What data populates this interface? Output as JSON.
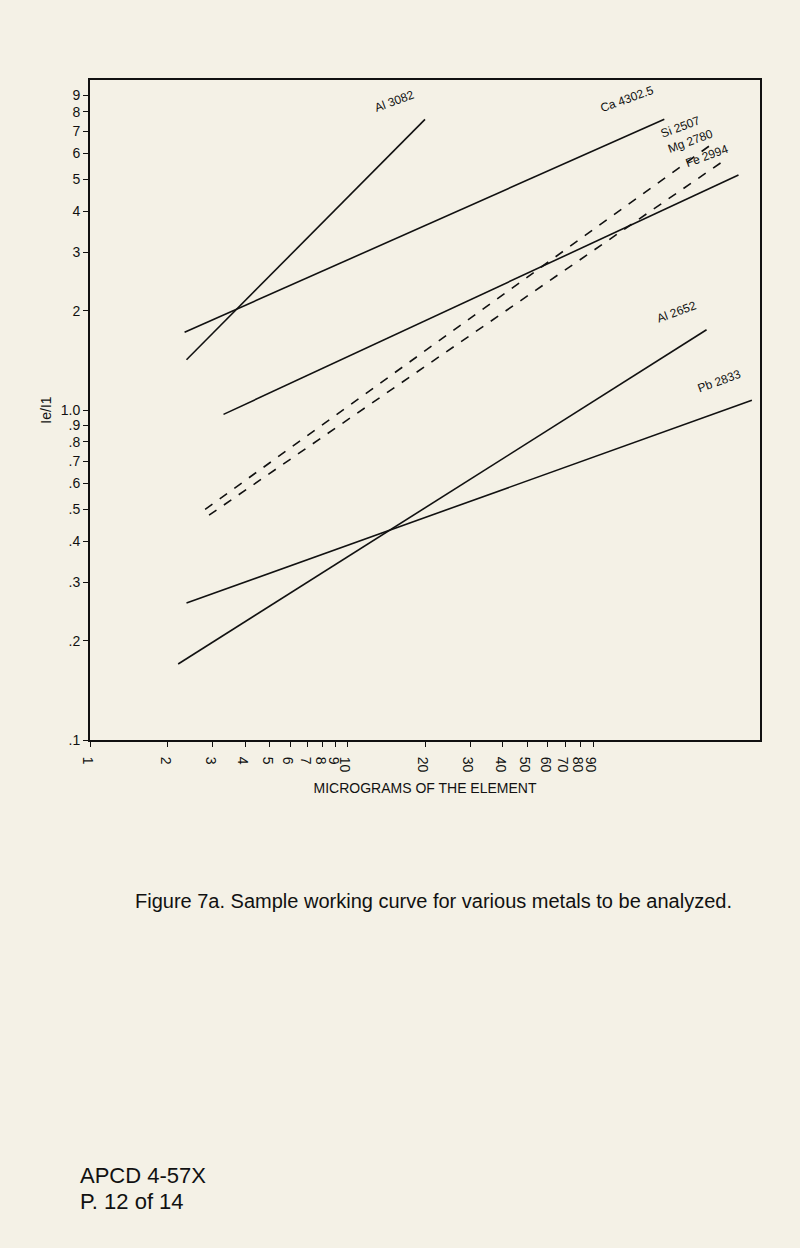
{
  "chart_data": {
    "type": "line",
    "x_label": "MICROGRAMS OF THE ELEMENT",
    "y_label": "Ie/I1",
    "caption": "Figure 7a. Sample working curve for various metals to be analyzed.",
    "footer": [
      "APCD 4-57X",
      "P. 12 of 14"
    ],
    "log": true,
    "grid": false,
    "xlim": [
      1,
      400
    ],
    "xticks": [
      1,
      2,
      3,
      4,
      5,
      6,
      7,
      8,
      9,
      10,
      20,
      30,
      40,
      50,
      60,
      70,
      80,
      90
    ],
    "ylim": [
      0.1,
      10
    ],
    "yticks": [
      {
        "value": 0.1,
        "label": ".1"
      },
      {
        "value": 0.2,
        "label": ".2"
      },
      {
        "value": 0.3,
        "label": ".3"
      },
      {
        "value": 0.4,
        "label": ".4"
      },
      {
        "value": 0.5,
        "label": ".5"
      },
      {
        "value": 0.6,
        "label": ".6"
      },
      {
        "value": 0.7,
        "label": ".7"
      },
      {
        "value": 0.8,
        "label": ".8"
      },
      {
        "value": 0.9,
        "label": ".9"
      },
      {
        "value": 1,
        "label": "1.0"
      },
      2,
      3,
      4,
      5,
      6,
      7,
      8,
      9
    ],
    "series": [
      {
        "name": "Al 3082",
        "color": "#111111",
        "line_style": "solid",
        "x": [
          2.37,
          20
        ],
        "values": [
          1.42,
          7.6
        ]
      },
      {
        "name": "Ca 4302.5",
        "color": "#111111",
        "line_style": "solid",
        "x": [
          2.33,
          170
        ],
        "values": [
          1.72,
          7.6
        ]
      },
      {
        "name": "Si 2507",
        "color": "#111111",
        "line_style": "dashed",
        "x": [
          2.8,
          257
        ],
        "values": [
          0.5,
          6.35
        ]
      },
      {
        "name": "Mg 2780",
        "color": "#111111",
        "line_style": "dashed",
        "x": [
          2.9,
          290
        ],
        "values": [
          0.48,
          5.7
        ]
      },
      {
        "name": "Fe 2994",
        "color": "#111111",
        "line_style": "solid",
        "x": [
          3.3,
          330
        ],
        "values": [
          0.97,
          5.15
        ]
      },
      {
        "name": "Al 2652",
        "color": "#111111",
        "line_style": "solid",
        "x": [
          2.2,
          248
        ],
        "values": [
          0.17,
          1.75
        ]
      },
      {
        "name": "Pb 2833",
        "color": "#111111",
        "line_style": "solid",
        "x": [
          2.37,
          372
        ],
        "values": [
          0.26,
          1.07
        ]
      }
    ]
  }
}
